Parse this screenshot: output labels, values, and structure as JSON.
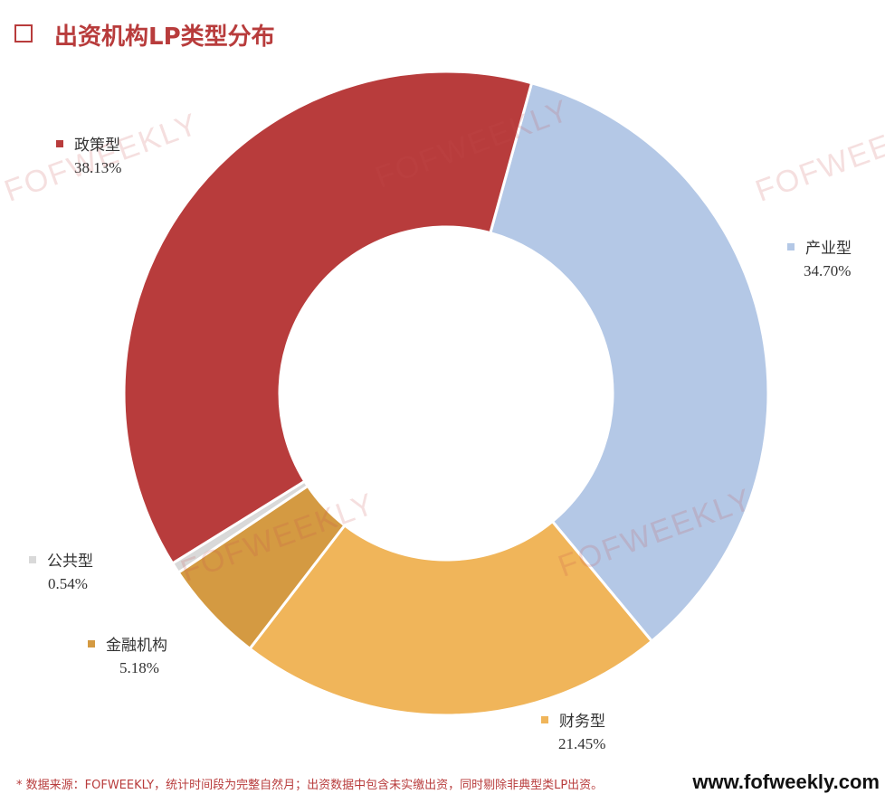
{
  "title": "出资机构LP类型分布",
  "watermark_text": "FOFWEEKLY",
  "footnote": "* 数据来源：FOFWEEKLY，统计时间段为完整自然月；出资数据中包含未实缴出资，同时剔除非典型类LP出资。",
  "website": "www.fofweekly.com",
  "colors": {
    "title": "#b83c3c"
  },
  "chart_data": {
    "type": "pie",
    "donut": true,
    "title": "出资机构LP类型分布",
    "slices": [
      {
        "name": "政策型",
        "value": 38.13,
        "label": "38.13%",
        "color": "#b83c3c"
      },
      {
        "name": "产业型",
        "value": 34.7,
        "label": "34.70%",
        "color": "#b4c8e6"
      },
      {
        "name": "财务型",
        "value": 21.45,
        "label": "21.45%",
        "color": "#f0b55a"
      },
      {
        "name": "金融机构",
        "value": 5.18,
        "label": "5.18%",
        "color": "#d49a42"
      },
      {
        "name": "公共型",
        "value": 0.54,
        "label": "0.54%",
        "color": "#d9d9d9"
      }
    ]
  }
}
